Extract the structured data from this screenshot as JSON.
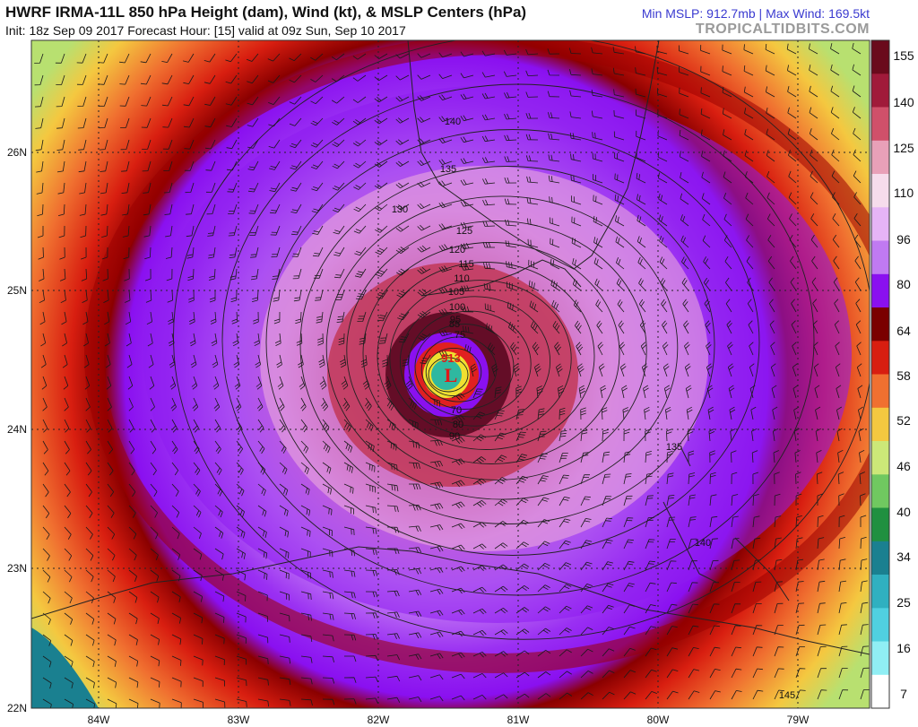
{
  "header": {
    "title": "HWRF IRMA-11L 850 hPa Height (dam), Wind (kt), & MSLP Centers (hPa)",
    "init_line": "Init: 18z Sep 09 2017   Forecast Hour: [15]   valid at 09z Sun, Sep 10 2017",
    "stats": "Min MSLP: 912.7mb | Max Wind: 169.5kt",
    "brand": "TROPICALTIDBITS.COM"
  },
  "map": {
    "lon_labels": [
      "84W",
      "83W",
      "82W",
      "81W",
      "80W",
      "79W"
    ],
    "lat_labels": [
      "26N",
      "25N",
      "24N",
      "23N",
      "22N"
    ],
    "low_center": {
      "label": "L",
      "pressure": "913"
    },
    "contour_labels": [
      "140",
      "135",
      "130",
      "125",
      "120",
      "115",
      "110",
      "105",
      "100",
      "95",
      "90",
      "85",
      "80",
      "75",
      "70",
      "135",
      "140",
      "145"
    ]
  },
  "colorbar": {
    "labels": [
      "155",
      "140",
      "125",
      "110",
      "96",
      "80",
      "64",
      "58",
      "52",
      "46",
      "40",
      "34",
      "25",
      "16",
      "7"
    ],
    "colors": [
      "#6a0a1c",
      "#a01a3a",
      "#d0506a",
      "#e8a0b8",
      "#f6dcec",
      "#e6b4f6",
      "#c07af2",
      "#8a10f0",
      "#7a0000",
      "#d81e10",
      "#f07030",
      "#f4c840",
      "#cce878",
      "#70c860",
      "#209040",
      "#1a8090",
      "#30b0c0",
      "#50d0e0",
      "#90eef4",
      "#ffffff"
    ]
  }
}
